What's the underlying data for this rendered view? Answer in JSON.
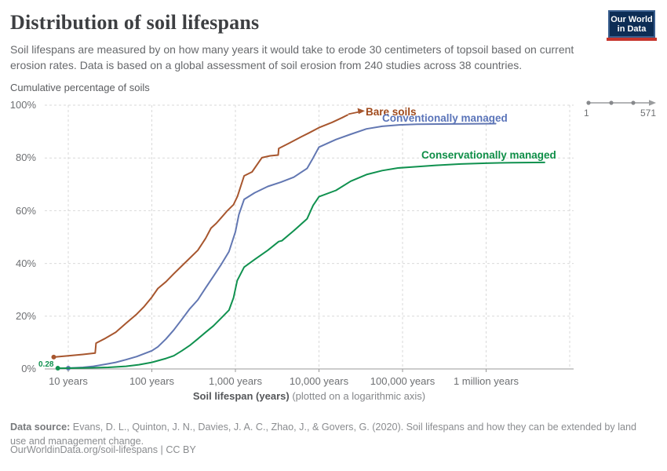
{
  "header": {
    "title": "Distribution of soil lifespans",
    "subtitle": "Soil lifespans are measured by on how many years it would take to erode 30 centimeters of topsoil based on current erosion rates. Data is based on a global assessment of soil erosion from 240 studies across 38 countries."
  },
  "logo": {
    "line1": "Our World",
    "line2": "in Data"
  },
  "timeline": {
    "start": "1",
    "end": "571"
  },
  "chart": {
    "y_axis_title": "Cumulative percentage of soils",
    "x_axis_title_bold": "Soil lifespan (years)",
    "x_axis_title_note": " (plotted on a logarithmic axis)",
    "y_ticks": [
      "100%",
      "80%",
      "60%",
      "40%",
      "20%",
      "0%"
    ],
    "x_ticks": [
      "10 years",
      "100 years",
      "1,000 years",
      "10,000 years",
      "100,000 years",
      "1 million years"
    ],
    "start_annotation": "0.28",
    "series_labels": {
      "bare": "Bare soils",
      "conventional": "Conventionally managed",
      "conservational": "Conservationally managed"
    }
  },
  "footer": {
    "source_label": "Data source:",
    "source_text": " Evans, D. L., Quinton, J. N., Davies, J. A. C., Zhao, J., & Govers, G. (2020). Soil lifespans and how they can be extended by land use and management change.",
    "license": "OurWorldinData.org/soil-lifespans | CC BY"
  },
  "chart_data": {
    "type": "line",
    "title": "Distribution of soil lifespans",
    "xlabel": "Soil lifespan (years)",
    "ylabel": "Cumulative percentage of soils",
    "x_scale": "log10",
    "xlim_years": [
      5.2,
      11000000
    ],
    "ylim": [
      0,
      100
    ],
    "x_tick_values": [
      10,
      100,
      1000,
      10000,
      100000,
      1000000
    ],
    "y_tick_values": [
      0,
      20,
      40,
      60,
      80,
      100
    ],
    "grid": "dashed",
    "colors": {
      "gridline": "#d9d9d9",
      "axis": "#999999"
    },
    "series": [
      {
        "name": "Bare soils",
        "color": "#a7562e",
        "start_dot": true,
        "end_arrow": true,
        "points": [
          [
            6.7,
            4.5
          ],
          [
            10,
            5.0
          ],
          [
            15,
            5.5
          ],
          [
            21,
            6.0
          ],
          [
            21.5,
            9.8
          ],
          [
            27,
            11.4
          ],
          [
            37,
            13.9
          ],
          [
            49,
            17.3
          ],
          [
            66,
            20.8
          ],
          [
            81,
            23.7
          ],
          [
            100,
            27.2
          ],
          [
            118,
            30.5
          ],
          [
            148,
            33.1
          ],
          [
            183,
            36.1
          ],
          [
            229,
            39.1
          ],
          [
            284,
            42.0
          ],
          [
            355,
            45.0
          ],
          [
            440,
            49.5
          ],
          [
            510,
            53.4
          ],
          [
            590,
            55.2
          ],
          [
            680,
            57.4
          ],
          [
            790,
            59.8
          ],
          [
            950,
            62.3
          ],
          [
            1060,
            65.5
          ],
          [
            1270,
            73.2
          ],
          [
            1580,
            74.7
          ],
          [
            2070,
            80.1
          ],
          [
            2600,
            80.8
          ],
          [
            3250,
            81.1
          ],
          [
            3300,
            83.6
          ],
          [
            4400,
            85.6
          ],
          [
            6200,
            88.1
          ],
          [
            7600,
            89.5
          ],
          [
            10000,
            91.5
          ],
          [
            14400,
            93.5
          ],
          [
            19000,
            95.3
          ],
          [
            22000,
            96.3
          ]
        ]
      },
      {
        "name": "Conventionally managed",
        "color": "#6277b2",
        "start_dot": true,
        "points": [
          [
            10,
            0.3
          ],
          [
            15,
            0.6
          ],
          [
            20,
            1.0
          ],
          [
            28,
            1.8
          ],
          [
            37,
            2.5
          ],
          [
            49,
            3.5
          ],
          [
            66,
            4.7
          ],
          [
            100,
            6.9
          ],
          [
            118,
            8.4
          ],
          [
            148,
            11.4
          ],
          [
            183,
            14.8
          ],
          [
            229,
            18.8
          ],
          [
            284,
            22.8
          ],
          [
            355,
            26.2
          ],
          [
            440,
            30.7
          ],
          [
            545,
            35.1
          ],
          [
            676,
            39.6
          ],
          [
            837,
            44.5
          ],
          [
            1000,
            52.0
          ],
          [
            1100,
            58.5
          ],
          [
            1270,
            64.3
          ],
          [
            1700,
            66.8
          ],
          [
            2440,
            69.2
          ],
          [
            3500,
            70.8
          ],
          [
            5000,
            72.7
          ],
          [
            7200,
            76.0
          ],
          [
            8500,
            80.0
          ],
          [
            10000,
            84.1
          ],
          [
            16000,
            87.0
          ],
          [
            24000,
            89.0
          ],
          [
            37000,
            91.0
          ],
          [
            57000,
            92.0
          ],
          [
            88000,
            92.5
          ],
          [
            150000,
            92.8
          ],
          [
            400000,
            92.9
          ],
          [
            1300000,
            93.0
          ]
        ]
      },
      {
        "name": "Conservationally managed",
        "color": "#10914f",
        "start_dot": true,
        "first_point_label": "0.28",
        "points": [
          [
            7.5,
            0.28
          ],
          [
            15,
            0.35
          ],
          [
            30,
            0.6
          ],
          [
            49,
            1.0
          ],
          [
            70,
            1.6
          ],
          [
            100,
            2.5
          ],
          [
            148,
            4.0
          ],
          [
            183,
            5.0
          ],
          [
            229,
            6.9
          ],
          [
            284,
            8.9
          ],
          [
            355,
            11.4
          ],
          [
            440,
            13.9
          ],
          [
            545,
            16.3
          ],
          [
            676,
            19.3
          ],
          [
            837,
            22.3
          ],
          [
            950,
            27.0
          ],
          [
            1050,
            33.5
          ],
          [
            1270,
            38.6
          ],
          [
            1700,
            41.5
          ],
          [
            2440,
            45.0
          ],
          [
            3300,
            48.3
          ],
          [
            3600,
            48.6
          ],
          [
            5000,
            52.4
          ],
          [
            7200,
            56.9
          ],
          [
            8500,
            62.0
          ],
          [
            10000,
            65.3
          ],
          [
            16000,
            67.7
          ],
          [
            24000,
            71.2
          ],
          [
            37000,
            73.7
          ],
          [
            57000,
            75.2
          ],
          [
            88000,
            76.2
          ],
          [
            135000,
            76.6
          ],
          [
            250000,
            77.2
          ],
          [
            500000,
            77.7
          ],
          [
            1000000,
            78.0
          ],
          [
            2000000,
            78.2
          ],
          [
            5000000,
            78.3
          ]
        ]
      }
    ]
  }
}
